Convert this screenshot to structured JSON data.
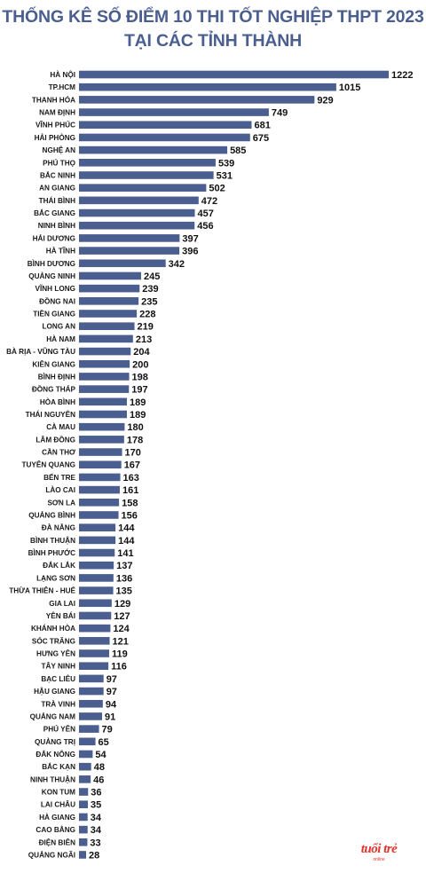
{
  "chart_data": {
    "type": "bar",
    "orientation": "horizontal",
    "title": "THỐNG KÊ SỐ ĐIỂM 10 THI TỐT NGHIỆP THPT 2023 TẠI CÁC TỈNH THÀNH",
    "title_lines": [
      "THỐNG KÊ SỐ ĐIỂM 10 THI TỐT NGHIỆP THPT 2023",
      "TẠI CÁC TỈNH THÀNH"
    ],
    "xlabel": "",
    "ylabel": "",
    "grid": false,
    "legend": "none",
    "xlim": [
      0,
      1222
    ],
    "bar_color": "#4a5f8f",
    "categories": [
      "HÀ NỘI",
      "TP.HCM",
      "THANH HÓA",
      "NAM ĐỊNH",
      "VĨNH PHÚC",
      "HẢI PHÒNG",
      "NGHỆ AN",
      "PHÚ THỌ",
      "BẮC NINH",
      "AN GIANG",
      "THÁI BÌNH",
      "BẮC GIANG",
      "NINH BÌNH",
      "HẢI DƯƠNG",
      "HÀ TĨNH",
      "BÌNH DƯƠNG",
      "QUẢNG NINH",
      "VĨNH LONG",
      "ĐỒNG NAI",
      "TIỀN GIANG",
      "LONG AN",
      "HÀ NAM",
      "BÀ RỊA - VŨNG TÀU",
      "KIÊN GIANG",
      "BÌNH ĐỊNH",
      "ĐỒNG THÁP",
      "HÒA BÌNH",
      "THÁI NGUYÊN",
      "CÀ MAU",
      "LÂM ĐỒNG",
      "CẦN THƠ",
      "TUYÊN QUANG",
      "BẾN TRE",
      "LÀO CAI",
      "SƠN LA",
      "QUẢNG BÌNH",
      "ĐÀ NẴNG",
      "BÌNH THUẬN",
      "BÌNH PHƯỚC",
      "ĐẮK LẮK",
      "LẠNG SƠN",
      "THỪA THIÊN - HUẾ",
      "GIA LAI",
      "YÊN BÁI",
      "KHÁNH HÒA",
      "SÓC TRĂNG",
      "HƯNG YÊN",
      "TÂY NINH",
      "BẠC LIÊU",
      "HẬU GIANG",
      "TRÀ VINH",
      "QUẢNG NAM",
      "PHÚ YÊN",
      "QUẢNG TRỊ",
      "ĐẮK NÔNG",
      "BẮC KẠN",
      "NINH THUẬN",
      "KON TUM",
      "LAI CHÂU",
      "HÀ GIANG",
      "CAO BẰNG",
      "ĐIỆN BIÊN",
      "QUẢNG NGÃI"
    ],
    "values": [
      1222,
      1015,
      929,
      749,
      681,
      675,
      585,
      539,
      531,
      502,
      472,
      457,
      456,
      397,
      396,
      342,
      245,
      239,
      235,
      228,
      219,
      213,
      204,
      200,
      198,
      197,
      189,
      189,
      180,
      178,
      170,
      167,
      163,
      161,
      158,
      156,
      144,
      144,
      141,
      137,
      136,
      135,
      129,
      127,
      124,
      121,
      119,
      116,
      97,
      97,
      94,
      91,
      79,
      65,
      54,
      48,
      46,
      36,
      35,
      34,
      34,
      33,
      28
    ]
  },
  "logo": {
    "line1": "tuổi trẻ",
    "line2": "online"
  }
}
